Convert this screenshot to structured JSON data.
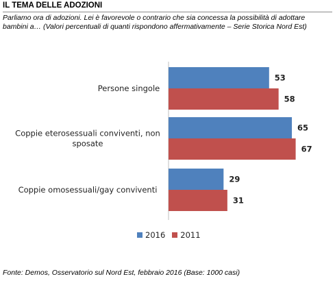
{
  "header": {
    "title": "IL TEMA DELLE ADOZIONI",
    "subtitle": "Parliamo ora di adozioni. Lei è favorevole o contrario che sia concessa la possibilità di adottare bambini a… (Valori percentuali di quanti rispondono affermativamente – Serie Storica Nord Est)"
  },
  "chart_data": {
    "type": "bar",
    "orientation": "horizontal",
    "categories": [
      [
        "Persone singole"
      ],
      [
        "Coppie eterosessuali conviventi, non",
        "sposate"
      ],
      [
        "Coppie omosessuali/gay conviventi"
      ]
    ],
    "series": [
      {
        "name": "2016",
        "color": "#4f81bd",
        "values": [
          53,
          65,
          29
        ]
      },
      {
        "name": "2011",
        "color": "#c0504d",
        "values": [
          58,
          67,
          31
        ]
      }
    ],
    "xlim": [
      0,
      100
    ],
    "grid": false,
    "legend_position": "bottom"
  },
  "footer": {
    "source": "Fonte: Demos, Osservatorio sul Nord Est, febbraio 2016 (Base: 1000 casi)"
  }
}
